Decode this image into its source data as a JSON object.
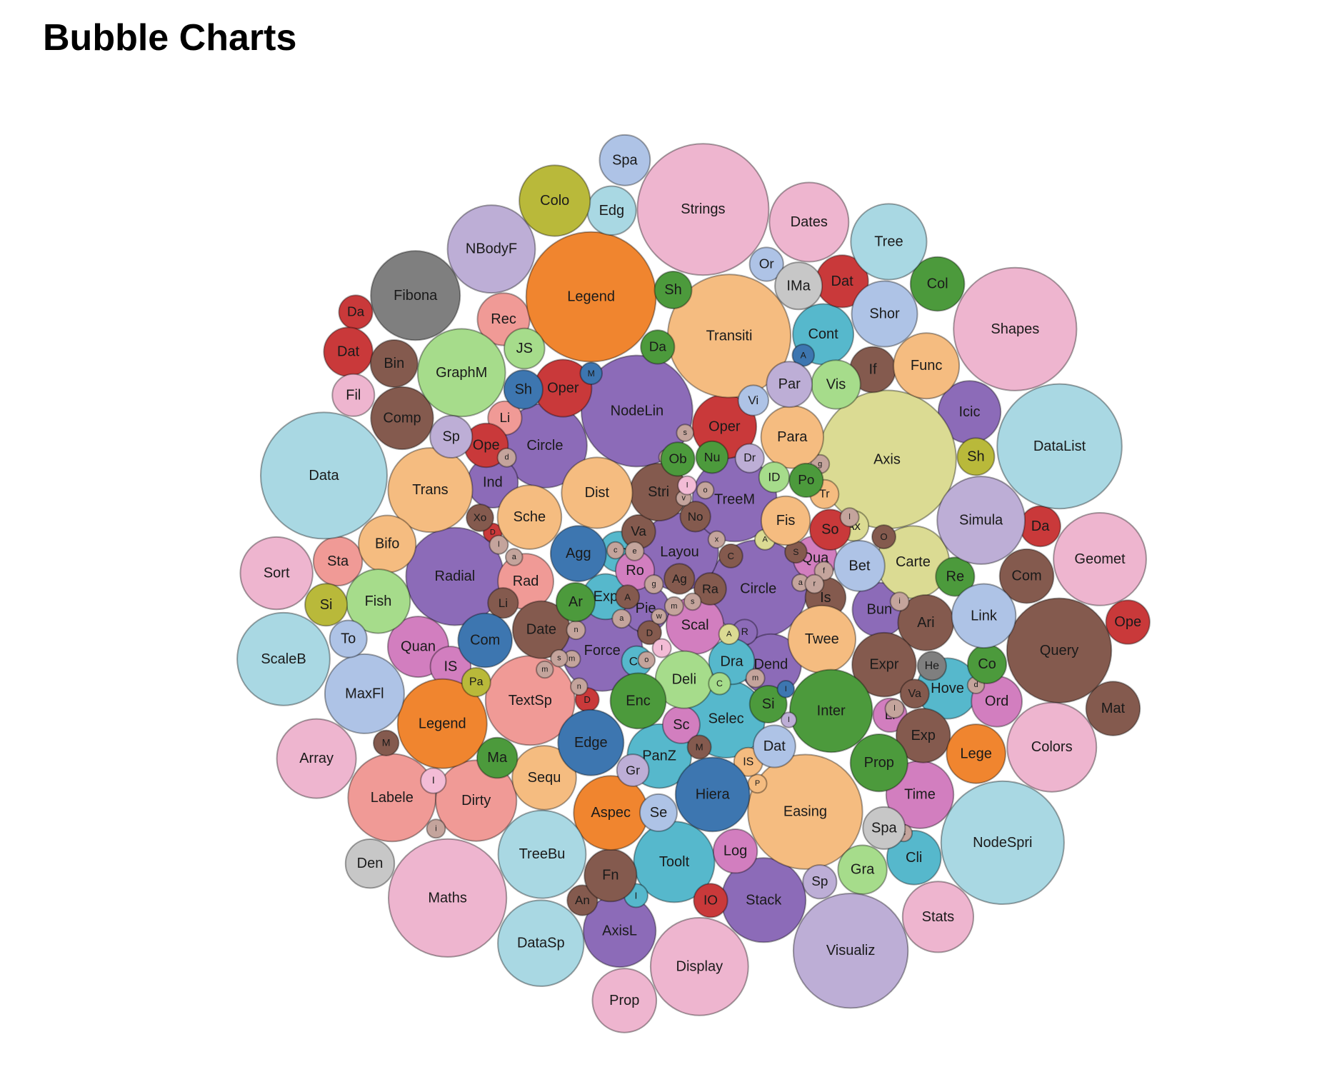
{
  "chart_data": {
    "type": "bubble",
    "title": "Bubble Charts",
    "groups": [
      {
        "color": "#8c6bb8",
        "items": [
          {
            "label": "Circle",
            "value": 3364
          },
          {
            "label": "Circle",
            "value": 2500
          },
          {
            "label": "Force",
            "value": 2304
          },
          {
            "label": "Dend",
            "value": 1296
          },
          {
            "label": "Icic",
            "value": 1369
          },
          {
            "label": "Ind",
            "value": 900
          },
          {
            "label": "Layou",
            "value": 2116
          },
          {
            "label": "NodeLin",
            "value": 4356
          },
          {
            "label": "Pie",
            "value": 784
          },
          {
            "label": "Radial",
            "value": 3364
          },
          {
            "label": "R",
            "value": 225
          },
          {
            "label": "Stack",
            "value": 2500
          },
          {
            "label": "TreeM",
            "value": 2500
          },
          {
            "label": "Bun",
            "value": 1024
          },
          {
            "label": "AxisL",
            "value": 1849
          }
        ]
      },
      {
        "color": "#56b8cc",
        "items": [
          {
            "label": "Toolt",
            "value": 2304
          },
          {
            "label": "Selec",
            "value": 2116
          },
          {
            "label": "PanZ",
            "value": 1444
          },
          {
            "label": "I",
            "value": 196
          },
          {
            "label": "Hove",
            "value": 1296
          },
          {
            "label": "Exp",
            "value": 729
          },
          {
            "label": "Dra",
            "value": 729
          },
          {
            "label": "Cont",
            "value": 1296
          },
          {
            "label": "Co",
            "value": 324
          },
          {
            "label": "Cli",
            "value": 1024
          },
          {
            "label": "An",
            "value": 576
          }
        ]
      },
      {
        "color": "#d27ebf",
        "items": [
          {
            "label": "Time",
            "value": 1600
          },
          {
            "label": "Sc",
            "value": 484
          },
          {
            "label": "Scal",
            "value": 1156
          },
          {
            "label": "Ro",
            "value": 529
          },
          {
            "label": "Quan",
            "value": 1296
          },
          {
            "label": "Qua",
            "value": 676
          },
          {
            "label": "Ord",
            "value": 900
          },
          {
            "label": "Log",
            "value": 676
          },
          {
            "label": "Li",
            "value": 400
          },
          {
            "label": "IS",
            "value": 576
          }
        ]
      },
      {
        "color": "#dbdb93",
        "items": [
          {
            "label": "Carte",
            "value": 1849
          },
          {
            "label": "A",
            "value": 144
          },
          {
            "label": "A",
            "value": 144
          },
          {
            "label": "Axis",
            "value": 6724
          },
          {
            "label": "Ax",
            "value": 324
          }
        ]
      },
      {
        "color": "#f09a96",
        "items": [
          {
            "label": "Sta",
            "value": 841
          },
          {
            "label": "Rad",
            "value": 1089
          },
          {
            "label": "Labele",
            "value": 2704
          },
          {
            "label": "Dirty",
            "value": 2304
          },
          {
            "label": "Li",
            "value": 400
          },
          {
            "label": "Rec",
            "value": 961
          },
          {
            "label": "TextSp",
            "value": 2809
          }
        ]
      },
      {
        "color": "#c9393a",
        "items": [
          {
            "label": "IO",
            "value": 400
          },
          {
            "label": "Ope",
            "value": 676
          },
          {
            "label": "Oper",
            "value": 1444
          },
          {
            "label": "Oper",
            "value": 1156
          },
          {
            "label": "Ope",
            "value": 676
          },
          {
            "label": "So",
            "value": 576
          },
          {
            "label": "Da",
            "value": 400
          },
          {
            "label": "Da",
            "value": 576
          },
          {
            "label": "D",
            "value": 121
          },
          {
            "label": "Dat",
            "value": 961
          },
          {
            "label": "D",
            "value": 196
          },
          {
            "label": "Dat",
            "value": 841
          }
        ]
      },
      {
        "color": "#845a4e",
        "items": [
          {
            "label": "Com",
            "value": 1024
          },
          {
            "label": "Comp",
            "value": 1369
          },
          {
            "label": "Bin",
            "value": 784
          },
          {
            "label": "A",
            "value": 196
          },
          {
            "label": "Ari",
            "value": 1089
          },
          {
            "label": "An",
            "value": 324
          },
          {
            "label": "Ag",
            "value": 324
          },
          {
            "label": "C",
            "value": 196
          },
          {
            "label": "Date",
            "value": 1156
          },
          {
            "label": "D",
            "value": 196
          },
          {
            "label": "Expr",
            "value": 1444
          },
          {
            "label": "Exp",
            "value": 1024
          },
          {
            "label": "Fn",
            "value": 961
          },
          {
            "label": "If",
            "value": 729
          },
          {
            "label": "Is",
            "value": 576
          },
          {
            "label": "Li",
            "value": 324
          },
          {
            "label": "Mat",
            "value": 1024
          },
          {
            "label": "M",
            "value": 196
          },
          {
            "label": "Xo",
            "value": 256
          },
          {
            "label": "Va",
            "value": 400
          },
          {
            "label": "Va",
            "value": 289
          },
          {
            "label": "S",
            "value": 169
          },
          {
            "label": "Stri",
            "value": 1156
          },
          {
            "label": "Ra",
            "value": 361
          },
          {
            "label": "Query",
            "value": 3844
          },
          {
            "label": "M",
            "value": 225
          },
          {
            "label": "No",
            "value": 324
          },
          {
            "label": "O",
            "value": 196
          }
        ]
      },
      {
        "color": "#c4a49c",
        "items": [
          {
            "label": "a",
            "value": 121
          },
          {
            "label": "a",
            "value": 100
          },
          {
            "label": "a",
            "value": 100
          },
          {
            "label": "c",
            "value": 100
          },
          {
            "label": "d",
            "value": 100
          },
          {
            "label": "d",
            "value": 121
          },
          {
            "label": "e",
            "value": 121
          },
          {
            "label": "f",
            "value": 121
          },
          {
            "label": "g",
            "value": 121
          },
          {
            "label": "g",
            "value": 121
          },
          {
            "label": "i",
            "value": 121
          },
          {
            "label": "i",
            "value": 121
          },
          {
            "label": "l",
            "value": 121
          },
          {
            "label": "l",
            "value": 121
          },
          {
            "label": "m",
            "value": 100
          },
          {
            "label": "m",
            "value": 100
          },
          {
            "label": "m",
            "value": 121
          },
          {
            "label": "m",
            "value": 121
          },
          {
            "label": "n",
            "value": 121
          },
          {
            "label": "n",
            "value": 100
          },
          {
            "label": "o",
            "value": 100
          },
          {
            "label": "o",
            "value": 100
          },
          {
            "label": "r",
            "value": 121
          },
          {
            "label": "s",
            "value": 100
          },
          {
            "label": "s",
            "value": 100
          },
          {
            "label": "s",
            "value": 100
          },
          {
            "label": "s",
            "value": 100
          },
          {
            "label": "u",
            "value": 81
          },
          {
            "label": "w",
            "value": 81
          },
          {
            "label": "v",
            "value": 81
          },
          {
            "label": "x",
            "value": 100
          },
          {
            "label": "l",
            "value": 121
          }
        ]
      },
      {
        "color": "#f3bcd6",
        "items": [
          {
            "label": "I",
            "value": 121
          },
          {
            "label": "I",
            "value": 121
          },
          {
            "label": "I",
            "value": 225
          }
        ]
      },
      {
        "color": "#f5bc80",
        "items": [
          {
            "label": "Twee",
            "value": 1600
          },
          {
            "label": "Tr",
            "value": 289
          },
          {
            "label": "Transiti",
            "value": 5329
          },
          {
            "label": "Easing",
            "value": 4624
          },
          {
            "label": "Trans",
            "value": 2500
          },
          {
            "label": "Func",
            "value": 1521
          },
          {
            "label": "Sequ",
            "value": 1444
          },
          {
            "label": "Sche",
            "value": 1444
          },
          {
            "label": "P",
            "value": 121
          },
          {
            "label": "IS",
            "value": 289
          },
          {
            "label": "Para",
            "value": 1369
          },
          {
            "label": "Fis",
            "value": 841
          },
          {
            "label": "Bifo",
            "value": 1156
          },
          {
            "label": "Dist",
            "value": 1764
          }
        ]
      },
      {
        "color": "#f0852f",
        "items": [
          {
            "label": "Aspec",
            "value": 1936
          },
          {
            "label": "Legend",
            "value": 5929
          },
          {
            "label": "Lege",
            "value": 1225
          },
          {
            "label": "Legend",
            "value": 2809
          }
        ]
      },
      {
        "color": "#a6dc8b",
        "items": [
          {
            "label": "Deli",
            "value": 1156
          },
          {
            "label": "C",
            "value": 169
          },
          {
            "label": "GraphM",
            "value": 2704
          },
          {
            "label": "ID",
            "value": 324
          },
          {
            "label": "JS",
            "value": 576
          },
          {
            "label": "Vis",
            "value": 841
          },
          {
            "label": "Gra",
            "value": 841
          },
          {
            "label": "Fish",
            "value": 1444
          }
        ]
      },
      {
        "color": "#4c9a3c",
        "items": [
          {
            "label": "Ar",
            "value": 529
          },
          {
            "label": "Co",
            "value": 529
          },
          {
            "label": "Da",
            "value": 400
          },
          {
            "label": "Inter",
            "value": 2401
          },
          {
            "label": "Ma",
            "value": 576
          },
          {
            "label": "Nu",
            "value": 361
          },
          {
            "label": "Ob",
            "value": 400
          },
          {
            "label": "Po",
            "value": 400
          },
          {
            "label": "Re",
            "value": 529
          },
          {
            "label": "Si",
            "value": 484
          },
          {
            "label": "Sh",
            "value": 484
          },
          {
            "label": "Prop",
            "value": 1156
          },
          {
            "label": "Enc",
            "value": 1089
          },
          {
            "label": "Col",
            "value": 1024
          }
        ]
      },
      {
        "color": "#3d76b0",
        "items": [
          {
            "label": "Hiera",
            "value": 1936
          },
          {
            "label": "M",
            "value": 169
          },
          {
            "label": "Agg",
            "value": 1089
          },
          {
            "label": "Com",
            "value": 1024
          },
          {
            "label": "A",
            "value": 169
          },
          {
            "label": "I",
            "value": 100
          },
          {
            "label": "Sh",
            "value": 529
          },
          {
            "label": "Edge",
            "value": 1521
          }
        ]
      },
      {
        "color": "#aec3e6",
        "items": [
          {
            "label": "Bet",
            "value": 900
          },
          {
            "label": "Spa",
            "value": 900
          },
          {
            "label": "Link",
            "value": 1444
          },
          {
            "label": "MaxFl",
            "value": 2209
          },
          {
            "label": "Shor",
            "value": 1521
          },
          {
            "label": "Vi",
            "value": 324
          },
          {
            "label": "To",
            "value": 484
          },
          {
            "label": "Se",
            "value": 484
          },
          {
            "label": "Dat",
            "value": 625
          },
          {
            "label": "Or",
            "value": 400
          }
        ]
      },
      {
        "color": "#bdaed6",
        "items": [
          {
            "label": "Sp",
            "value": 400
          },
          {
            "label": "Sp",
            "value": 625
          },
          {
            "label": "Simula",
            "value": 2704
          },
          {
            "label": "Par",
            "value": 729
          },
          {
            "label": "NBodyF",
            "value": 2704
          },
          {
            "label": "I",
            "value": 81
          },
          {
            "label": "Gr",
            "value": 361
          },
          {
            "label": "Dr",
            "value": 289
          },
          {
            "label": "Visualiz",
            "value": 4624
          }
        ]
      },
      {
        "color": "#a9d8e3",
        "items": [
          {
            "label": "Data",
            "value": 5625
          },
          {
            "label": "DataList",
            "value": 5476
          },
          {
            "label": "DataSp",
            "value": 2601
          },
          {
            "label": "Edg",
            "value": 841
          },
          {
            "label": "NodeSpri",
            "value": 5329
          },
          {
            "label": "ScaleB",
            "value": 3025
          },
          {
            "label": "Tree",
            "value": 2025
          },
          {
            "label": "TreeBu",
            "value": 2704
          }
        ]
      },
      {
        "color": "#7f7f7f",
        "items": [
          {
            "label": "Fibona",
            "value": 2809
          },
          {
            "label": "He",
            "value": 289
          }
        ]
      },
      {
        "color": "#c7c7c7",
        "items": [
          {
            "label": "Den",
            "value": 841
          },
          {
            "label": "IMa",
            "value": 784
          },
          {
            "label": "Spa",
            "value": 625
          }
        ]
      },
      {
        "color": "#b9b93a",
        "items": [
          {
            "label": "Si",
            "value": 625
          },
          {
            "label": "Sh",
            "value": 484
          },
          {
            "label": "Pa",
            "value": 289
          },
          {
            "label": "Colo",
            "value": 1764
          }
        ]
      },
      {
        "color": "#eeb5cf",
        "items": [
          {
            "label": "Colors",
            "value": 2809
          },
          {
            "label": "Array",
            "value": 2209
          },
          {
            "label": "Dates",
            "value": 2209
          },
          {
            "label": "Display",
            "value": 3364
          },
          {
            "label": "Fil",
            "value": 625
          },
          {
            "label": "Geomet",
            "value": 3025
          },
          {
            "label": "Maths",
            "value": 4900
          },
          {
            "label": "Strings",
            "value": 6084
          },
          {
            "label": "Stats",
            "value": 1764
          },
          {
            "label": "Sort",
            "value": 1849
          },
          {
            "label": "Shapes",
            "value": 5329
          },
          {
            "label": "Prop",
            "value": 1444
          }
        ]
      }
    ]
  }
}
